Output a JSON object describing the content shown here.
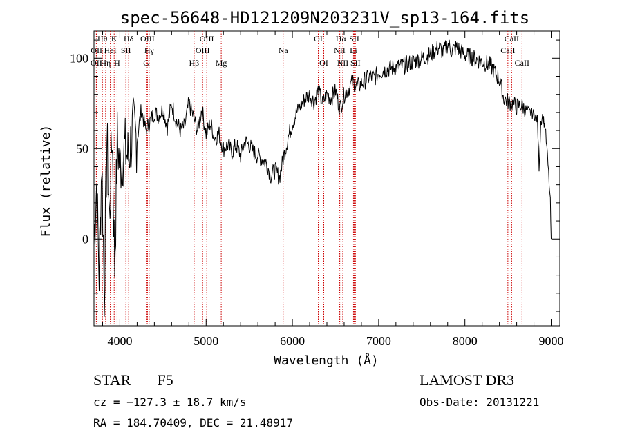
{
  "chart_data": {
    "type": "line",
    "title": "spec-56648-HD121209N203231V_sp13-164.fits",
    "xlabel": "Wavelength (Å)",
    "ylabel": "Flux (relative)",
    "xlim": [
      3700,
      9100
    ],
    "ylim": [
      -48,
      115
    ],
    "x_ticks": [
      4000,
      5000,
      6000,
      7000,
      8000,
      9000
    ],
    "y_ticks": [
      0,
      50,
      100
    ],
    "grid": false,
    "series": [
      {
        "name": "spectrum",
        "x": [
          3700,
          3730,
          3760,
          3790,
          3820,
          3850,
          3880,
          3910,
          3940,
          3970,
          4000,
          4050,
          4100,
          4150,
          4200,
          4250,
          4300,
          4350,
          4400,
          4450,
          4500,
          4550,
          4600,
          4650,
          4700,
          4750,
          4800,
          4850,
          4900,
          4950,
          5000,
          5050,
          5100,
          5150,
          5200,
          5250,
          5300,
          5350,
          5400,
          5450,
          5500,
          5550,
          5600,
          5650,
          5700,
          5750,
          5800,
          5850,
          5900,
          5950,
          6000,
          6050,
          6100,
          6150,
          6200,
          6250,
          6300,
          6350,
          6400,
          6450,
          6500,
          6550,
          6600,
          6650,
          6700,
          6750,
          6800,
          6850,
          6900,
          6950,
          7000,
          7100,
          7200,
          7300,
          7400,
          7500,
          7600,
          7700,
          7750,
          7800,
          7850,
          7900,
          8000,
          8100,
          8200,
          8300,
          8400,
          8450,
          8500,
          8550,
          8600,
          8650,
          8700,
          8750,
          8800,
          8840,
          8860,
          8880,
          8900,
          8930,
          8950,
          8970,
          8990,
          9000
        ],
        "y": [
          0,
          30,
          -20,
          45,
          -30,
          55,
          10,
          60,
          -15,
          55,
          40,
          50,
          45,
          60,
          55,
          72,
          60,
          65,
          70,
          68,
          72,
          62,
          75,
          66,
          60,
          62,
          75,
          68,
          60,
          72,
          58,
          64,
          56,
          58,
          50,
          52,
          48,
          52,
          46,
          54,
          52,
          48,
          46,
          44,
          42,
          35,
          38,
          34,
          46,
          56,
          64,
          70,
          74,
          78,
          80,
          76,
          82,
          75,
          80,
          78,
          82,
          72,
          80,
          83,
          87,
          84,
          86,
          88,
          90,
          89,
          92,
          94,
          95,
          96,
          98,
          100,
          102,
          106,
          103,
          108,
          104,
          106,
          102,
          100,
          98,
          96,
          88,
          78,
          76,
          75,
          73,
          74,
          72,
          70,
          69,
          66,
          40,
          65,
          68,
          62,
          50,
          36,
          20,
          0
        ]
      }
    ],
    "line_markers": [
      {
        "label": "Hθ",
        "wavelength": 3798,
        "row": 1
      },
      {
        "label": "OII",
        "wavelength": 3727,
        "row": 3
      },
      {
        "label": "OII",
        "wavelength": 3729,
        "row": 2
      },
      {
        "label": "Hη",
        "wavelength": 3835,
        "row": 3
      },
      {
        "label": "HeI",
        "wavelength": 3889,
        "row": 2
      },
      {
        "label": "K",
        "wavelength": 3934,
        "row": 1
      },
      {
        "label": "H",
        "wavelength": 3968,
        "row": 3
      },
      {
        "label": "SII",
        "wavelength": 4070,
        "row": 2
      },
      {
        "label": "Hδ",
        "wavelength": 4102,
        "row": 1
      },
      {
        "label": "G",
        "wavelength": 4306,
        "row": 3
      },
      {
        "label": "OIII",
        "wavelength": 4320,
        "row": 1
      },
      {
        "label": "Hγ",
        "wavelength": 4340,
        "row": 2
      },
      {
        "label": "Hβ",
        "wavelength": 4861,
        "row": 3
      },
      {
        "label": "OIII",
        "wavelength": 4959,
        "row": 2
      },
      {
        "label": "OIII",
        "wavelength": 5007,
        "row": 1
      },
      {
        "label": "Mg",
        "wavelength": 5175,
        "row": 3
      },
      {
        "label": "Na",
        "wavelength": 5893,
        "row": 2
      },
      {
        "label": "OI",
        "wavelength": 6300,
        "row": 1
      },
      {
        "label": "OI",
        "wavelength": 6364,
        "row": 3
      },
      {
        "label": "NII",
        "wavelength": 6548,
        "row": 2
      },
      {
        "label": "Hα",
        "wavelength": 6563,
        "row": 1
      },
      {
        "label": "NII",
        "wavelength": 6584,
        "row": 3
      },
      {
        "label": "Li",
        "wavelength": 6708,
        "row": 2
      },
      {
        "label": "SII",
        "wavelength": 6717,
        "row": 1
      },
      {
        "label": "SII",
        "wavelength": 6731,
        "row": 3
      },
      {
        "label": "CaII",
        "wavelength": 8498,
        "row": 2
      },
      {
        "label": "CaII",
        "wavelength": 8542,
        "row": 1
      },
      {
        "label": "CaII",
        "wavelength": 8662,
        "row": 3
      }
    ],
    "line_color": "#000000",
    "marker_color": "#cc0000"
  },
  "info": {
    "object_class": "STAR",
    "subclass": "F5",
    "survey": "LAMOST DR3",
    "redshift_line": "cz = −127.3 ± 18.7 km/s",
    "obs_date_line": "Obs-Date: 20131221",
    "coord_line": "RA = 184.70409, DEC =  21.48917"
  }
}
